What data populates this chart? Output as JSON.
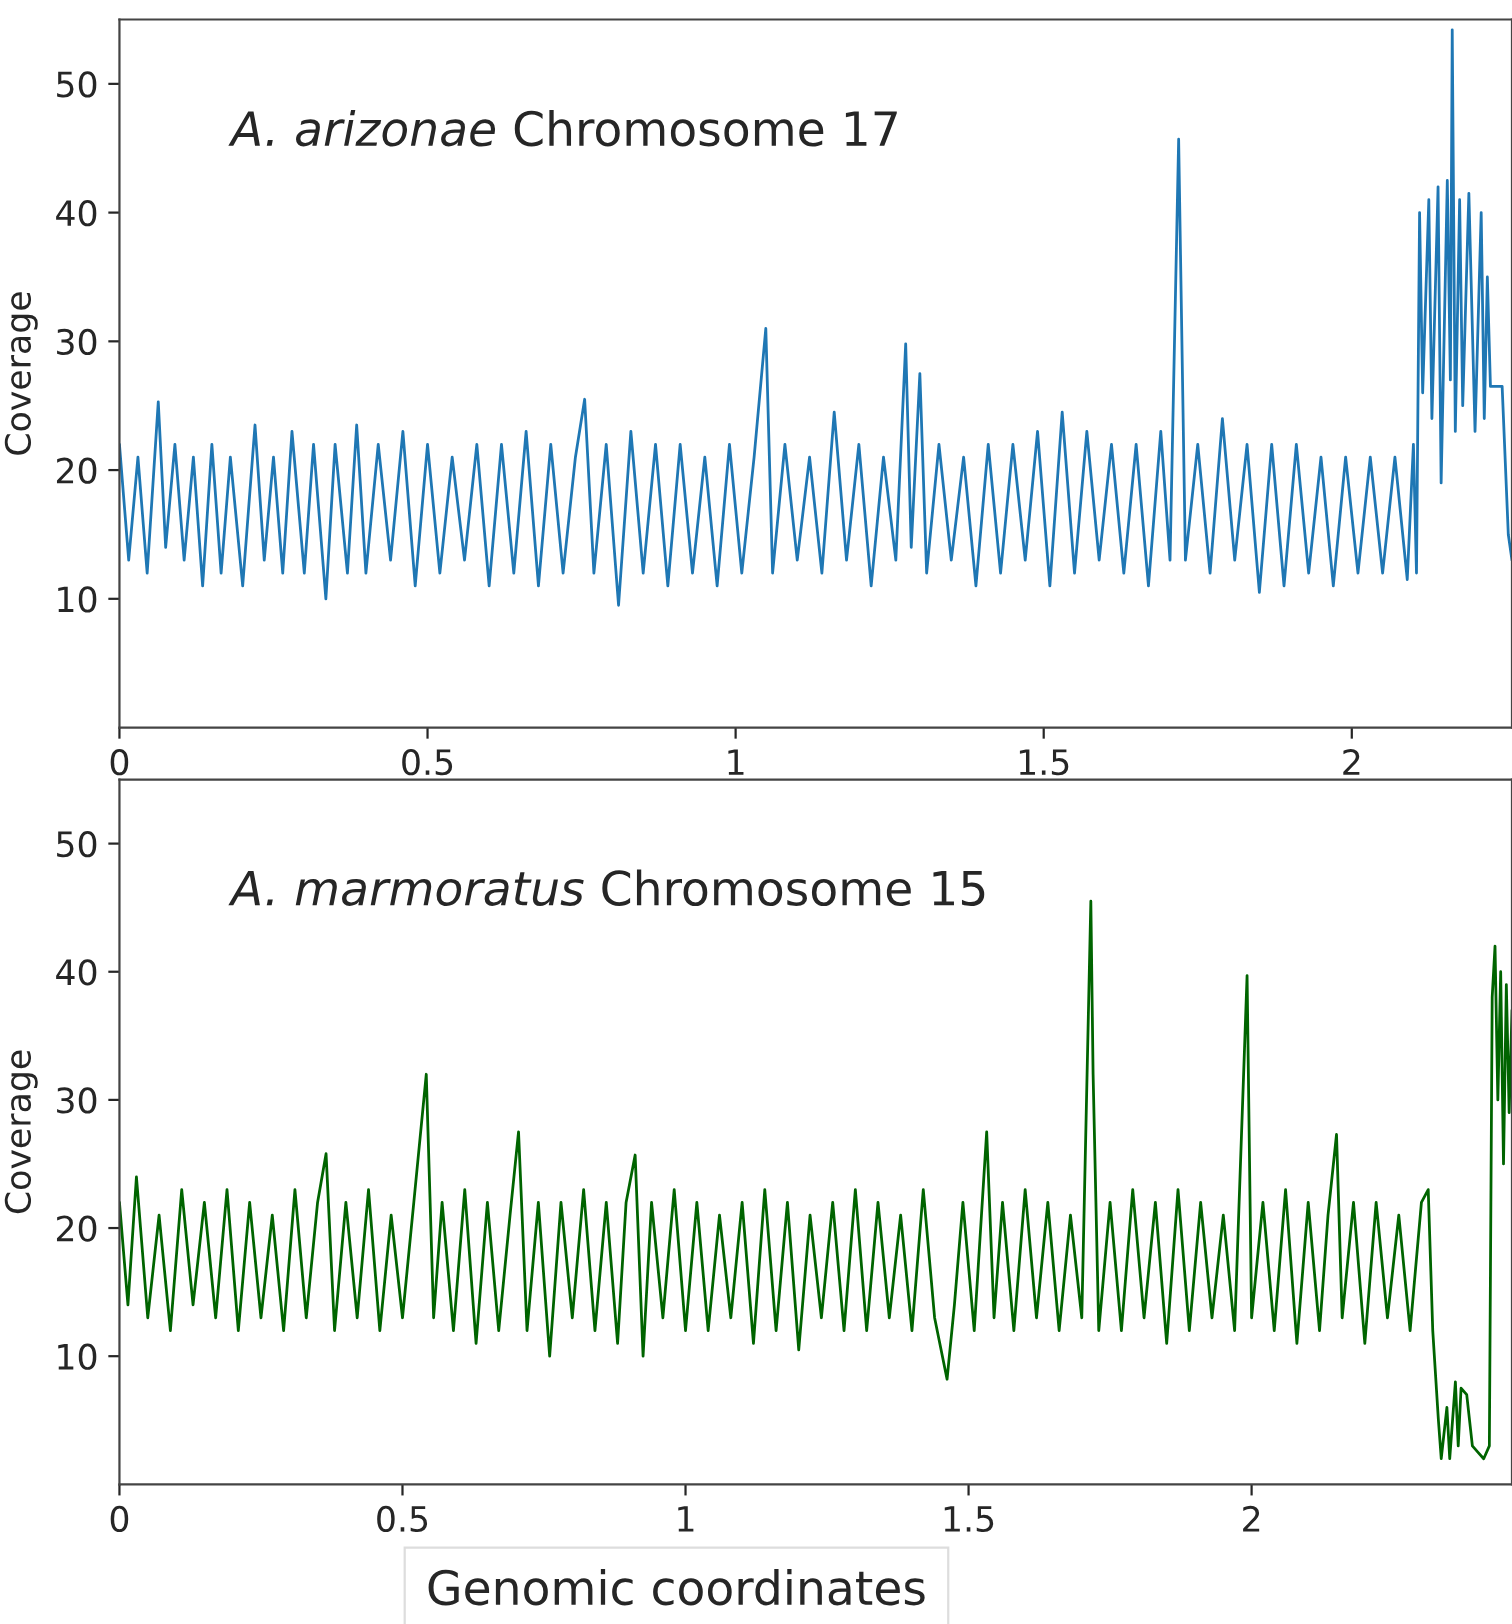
{
  "chart_data": [
    {
      "type": "line",
      "title": "A. arizonae Chromosome 17",
      "ylabel": "Coverage",
      "xlim": [
        0,
        2.26
      ],
      "ylim": [
        0,
        55
      ],
      "xticks": [
        0,
        0.5,
        1,
        1.5,
        2
      ],
      "yticks": [
        10,
        20,
        30,
        40,
        50
      ],
      "grid": false,
      "legend": false,
      "marker": "none",
      "line_style": "solid",
      "series": [
        {
          "color": "#1f77b4",
          "x": [
            0,
            0.015,
            0.03,
            0.045,
            0.063,
            0.075,
            0.09,
            0.105,
            0.12,
            0.135,
            0.15,
            0.165,
            0.18,
            0.2,
            0.22,
            0.235,
            0.25,
            0.265,
            0.28,
            0.3,
            0.315,
            0.335,
            0.35,
            0.37,
            0.385,
            0.4,
            0.42,
            0.44,
            0.46,
            0.48,
            0.5,
            0.52,
            0.54,
            0.56,
            0.58,
            0.6,
            0.62,
            0.64,
            0.66,
            0.68,
            0.7,
            0.72,
            0.74,
            0.755,
            0.77,
            0.79,
            0.81,
            0.83,
            0.85,
            0.87,
            0.89,
            0.91,
            0.93,
            0.95,
            0.97,
            0.99,
            1.01,
            1.03,
            1.049,
            1.06,
            1.08,
            1.1,
            1.12,
            1.14,
            1.16,
            1.18,
            1.2,
            1.22,
            1.24,
            1.26,
            1.276,
            1.285,
            1.299,
            1.31,
            1.33,
            1.35,
            1.37,
            1.39,
            1.41,
            1.43,
            1.45,
            1.47,
            1.49,
            1.51,
            1.53,
            1.55,
            1.57,
            1.59,
            1.61,
            1.63,
            1.65,
            1.67,
            1.69,
            1.705,
            1.719,
            1.73,
            1.75,
            1.77,
            1.79,
            1.81,
            1.83,
            1.85,
            1.87,
            1.89,
            1.91,
            1.93,
            1.95,
            1.97,
            1.99,
            2.01,
            2.03,
            2.05,
            2.07,
            2.09,
            2.1,
            2.105,
            2.11,
            2.115,
            2.125,
            2.13,
            2.14,
            2.145,
            2.155,
            2.16,
            2.163,
            2.168,
            2.175,
            2.18,
            2.19,
            2.2,
            2.21,
            2.215,
            2.22,
            2.225,
            2.244,
            2.254,
            2.26
          ],
          "values": [
            22,
            13,
            21,
            12,
            25.3,
            14,
            22,
            13,
            21,
            11,
            22,
            12,
            21,
            11,
            23.5,
            13,
            21,
            12,
            23,
            12,
            22,
            10,
            22,
            12,
            23.5,
            12,
            22,
            13,
            23,
            11,
            22,
            12,
            21,
            13,
            22,
            11,
            22,
            12,
            23,
            11,
            22,
            12,
            21,
            25.5,
            12,
            22,
            9.5,
            23,
            12,
            22,
            11,
            22,
            12,
            21,
            11,
            22,
            12,
            21,
            31,
            12,
            22,
            13,
            21,
            12,
            24.5,
            13,
            22,
            11,
            21,
            13,
            29.8,
            14,
            27.5,
            12,
            22,
            13,
            21,
            11,
            22,
            12,
            22,
            13,
            23,
            11,
            24.5,
            12,
            23,
            13,
            22,
            12,
            22,
            11,
            23,
            13,
            45.7,
            13,
            22,
            12,
            24,
            13,
            22,
            10.5,
            22,
            11,
            22,
            12,
            21,
            11,
            21,
            12,
            21,
            12,
            21,
            11.5,
            22,
            12,
            40,
            26,
            41,
            24,
            42,
            19,
            42.5,
            27,
            54.2,
            23,
            41,
            25,
            41.5,
            23,
            40,
            24,
            35,
            26.5,
            26.5,
            15,
            13
          ]
        }
      ]
    },
    {
      "type": "line",
      "title": "A. marmoratus Chromosome 15",
      "ylabel": "Coverage",
      "xlabel": "Genomic coordinates",
      "xlim": [
        0,
        2.46
      ],
      "ylim": [
        0,
        55
      ],
      "xticks": [
        0,
        0.5,
        1,
        1.5,
        2
      ],
      "yticks": [
        10,
        20,
        30,
        40,
        50
      ],
      "grid": false,
      "legend": false,
      "marker": "none",
      "line_style": "solid",
      "series": [
        {
          "color": "#006400",
          "x": [
            0,
            0.015,
            0.03,
            0.05,
            0.07,
            0.09,
            0.11,
            0.13,
            0.15,
            0.17,
            0.19,
            0.21,
            0.23,
            0.25,
            0.27,
            0.29,
            0.31,
            0.33,
            0.35,
            0.365,
            0.38,
            0.4,
            0.42,
            0.44,
            0.46,
            0.48,
            0.5,
            0.52,
            0.542,
            0.555,
            0.57,
            0.59,
            0.61,
            0.63,
            0.65,
            0.67,
            0.69,
            0.705,
            0.72,
            0.74,
            0.76,
            0.78,
            0.8,
            0.82,
            0.84,
            0.86,
            0.88,
            0.895,
            0.911,
            0.925,
            0.94,
            0.96,
            0.98,
            1.0,
            1.02,
            1.04,
            1.06,
            1.08,
            1.1,
            1.12,
            1.14,
            1.16,
            1.18,
            1.2,
            1.22,
            1.24,
            1.26,
            1.28,
            1.3,
            1.32,
            1.34,
            1.36,
            1.38,
            1.4,
            1.42,
            1.44,
            1.462,
            1.475,
            1.49,
            1.51,
            1.532,
            1.545,
            1.56,
            1.58,
            1.6,
            1.62,
            1.64,
            1.66,
            1.68,
            1.7,
            1.716,
            1.72,
            1.73,
            1.75,
            1.77,
            1.79,
            1.81,
            1.83,
            1.85,
            1.87,
            1.89,
            1.91,
            1.93,
            1.95,
            1.97,
            1.992,
            2.0,
            2.02,
            2.04,
            2.06,
            2.08,
            2.1,
            2.12,
            2.135,
            2.15,
            2.16,
            2.18,
            2.2,
            2.22,
            2.24,
            2.26,
            2.28,
            2.3,
            2.312,
            2.32,
            2.33,
            2.335,
            2.345,
            2.35,
            2.36,
            2.365,
            2.37,
            2.38,
            2.39,
            2.4,
            2.41,
            2.42,
            2.425,
            2.43,
            2.435,
            2.44,
            2.445,
            2.45,
            2.455,
            2.46
          ],
          "values": [
            22,
            14,
            24,
            13,
            21,
            12,
            23,
            14,
            22,
            13,
            23,
            12,
            22,
            13,
            21,
            12,
            23,
            13,
            22,
            25.8,
            12,
            22,
            13,
            23,
            12,
            21,
            13,
            22,
            32,
            13,
            22,
            12,
            23,
            11,
            22,
            12,
            21,
            27.5,
            12,
            22,
            10,
            22,
            13,
            23,
            12,
            22,
            11,
            22,
            25.7,
            10,
            22,
            13,
            23,
            12,
            22,
            12,
            21,
            13,
            22,
            11,
            23,
            12,
            22,
            10.5,
            21,
            13,
            22,
            12,
            23,
            12,
            22,
            13,
            21,
            12,
            23,
            13,
            8.2,
            14,
            22,
            12,
            27.5,
            13,
            22,
            12,
            23,
            13,
            22,
            12,
            21,
            13,
            45.5,
            32,
            12,
            22,
            12,
            23,
            13,
            22,
            11,
            23,
            12,
            22,
            13,
            21,
            12,
            39.7,
            13,
            22,
            12,
            23,
            11,
            22,
            12,
            21,
            27.3,
            13,
            22,
            11,
            22,
            13,
            21,
            12,
            22,
            23,
            12,
            5,
            2,
            6,
            2,
            8,
            3,
            7.5,
            7,
            3,
            2.5,
            2,
            3,
            38,
            42,
            30,
            40,
            25,
            39,
            29,
            37
          ]
        }
      ]
    }
  ]
}
